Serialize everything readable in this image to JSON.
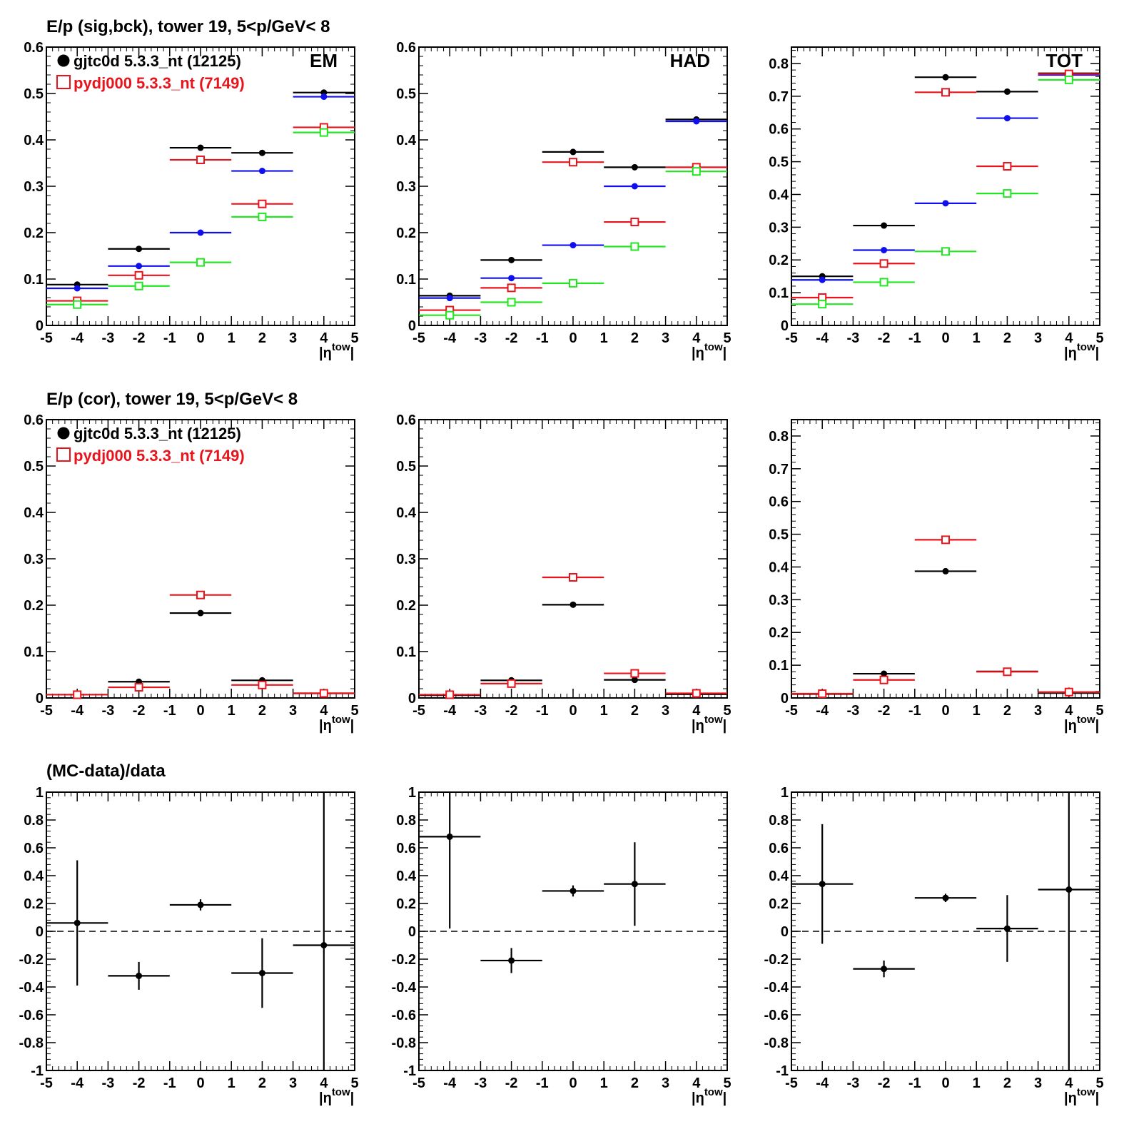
{
  "colors": {
    "data": "#000000",
    "mc": "#e8141c",
    "blue": "#1010ee",
    "green": "#22e622"
  },
  "row_titles": [
    "E/p (sig,bck), tower 19,  5<p/GeV< 8",
    "E/p (cor), tower 19,  5<p/GeV< 8",
    "(MC-data)/data"
  ],
  "legend": {
    "data_label": "gjtc0d 5.3.3_nt (12125)",
    "mc_label": "pydj000 5.3.3_nt (7149)"
  },
  "xaxis": {
    "label_main": "|η",
    "label_sup": "tow",
    "label_end": "|",
    "range": [
      -5,
      5
    ],
    "ticks": [
      "-5",
      "-4",
      "-3",
      "-2",
      "-1",
      "0",
      "1",
      "2",
      "3",
      "4",
      "5"
    ]
  },
  "chart_data": [
    {
      "type": "scatter",
      "tag": "EM",
      "ylim": [
        0,
        0.6
      ],
      "yticks": [
        "0",
        "0.1",
        "0.2",
        "0.3",
        "0.4",
        "0.5",
        "0.6"
      ],
      "legend_placement": "top-left",
      "x": [
        -4,
        -2,
        0,
        2,
        4
      ],
      "xerr": 1,
      "series": [
        {
          "color_key": "data",
          "marker": "dot",
          "values": [
            0.088,
            0.165,
            0.383,
            0.372,
            0.502
          ]
        },
        {
          "color_key": "blue",
          "marker": "dot",
          "values": [
            0.08,
            0.128,
            0.2,
            0.333,
            0.493
          ]
        },
        {
          "color_key": "mc",
          "marker": "square",
          "values": [
            0.053,
            0.108,
            0.357,
            0.262,
            0.427
          ]
        },
        {
          "color_key": "green",
          "marker": "square",
          "values": [
            0.045,
            0.085,
            0.136,
            0.234,
            0.416
          ]
        }
      ]
    },
    {
      "type": "scatter",
      "tag": "HAD",
      "ylim": [
        0,
        0.6
      ],
      "yticks": [
        "0",
        "0.1",
        "0.2",
        "0.3",
        "0.4",
        "0.5",
        "0.6"
      ],
      "x": [
        -4,
        -2,
        0,
        2,
        4
      ],
      "xerr": 1,
      "series": [
        {
          "color_key": "data",
          "marker": "dot",
          "values": [
            0.064,
            0.141,
            0.374,
            0.341,
            0.444
          ]
        },
        {
          "color_key": "blue",
          "marker": "dot",
          "values": [
            0.059,
            0.102,
            0.173,
            0.3,
            0.44
          ]
        },
        {
          "color_key": "mc",
          "marker": "square",
          "values": [
            0.033,
            0.081,
            0.352,
            0.223,
            0.341
          ]
        },
        {
          "color_key": "green",
          "marker": "square",
          "values": [
            0.022,
            0.05,
            0.091,
            0.17,
            0.332
          ]
        }
      ]
    },
    {
      "type": "scatter",
      "tag": "TOT",
      "ylim": [
        0,
        0.85
      ],
      "yticks": [
        "0",
        "0.1",
        "0.2",
        "0.3",
        "0.4",
        "0.5",
        "0.6",
        "0.7",
        "0.8"
      ],
      "x": [
        -4,
        -2,
        0,
        2,
        4
      ],
      "xerr": 1,
      "series": [
        {
          "color_key": "data",
          "marker": "dot",
          "values": [
            0.15,
            0.305,
            0.758,
            0.714,
            0.77
          ]
        },
        {
          "color_key": "blue",
          "marker": "dot",
          "values": [
            0.139,
            0.23,
            0.373,
            0.633,
            0.765
          ]
        },
        {
          "color_key": "mc",
          "marker": "square",
          "values": [
            0.085,
            0.189,
            0.712,
            0.486,
            0.768
          ]
        },
        {
          "color_key": "green",
          "marker": "square",
          "values": [
            0.065,
            0.132,
            0.226,
            0.403,
            0.75
          ]
        }
      ]
    },
    {
      "type": "scatter",
      "tag": "",
      "ylim": [
        0,
        0.6
      ],
      "yticks": [
        "0",
        "0.1",
        "0.2",
        "0.3",
        "0.4",
        "0.5",
        "0.6"
      ],
      "legend_placement": "top-left",
      "x": [
        -4,
        -2,
        0,
        2,
        4
      ],
      "xerr": 1,
      "series": [
        {
          "color_key": "data",
          "marker": "dot",
          "values": [
            0.007,
            0.035,
            0.183,
            0.038,
            0.01
          ],
          "yerr": [
            0.004,
            0,
            0,
            0,
            0.008
          ]
        },
        {
          "color_key": "mc",
          "marker": "square",
          "values": [
            0.007,
            0.023,
            0.222,
            0.028,
            0.01
          ],
          "yerr": [
            0,
            0,
            0,
            0,
            0.006
          ]
        }
      ]
    },
    {
      "type": "scatter",
      "tag": "",
      "ylim": [
        0,
        0.6
      ],
      "yticks": [
        "0",
        "0.1",
        "0.2",
        "0.3",
        "0.4",
        "0.5",
        "0.6"
      ],
      "x": [
        -4,
        -2,
        0,
        2,
        4
      ],
      "xerr": 1,
      "series": [
        {
          "color_key": "data",
          "marker": "dot",
          "values": [
            0.006,
            0.038,
            0.201,
            0.039,
            0.008
          ]
        },
        {
          "color_key": "mc",
          "marker": "square",
          "values": [
            0.007,
            0.031,
            0.26,
            0.053,
            0.01
          ],
          "yerr": [
            0,
            0,
            0,
            0,
            0.006
          ]
        }
      ]
    },
    {
      "type": "scatter",
      "tag": "",
      "ylim": [
        0,
        0.85
      ],
      "yticks": [
        "0",
        "0.1",
        "0.2",
        "0.3",
        "0.4",
        "0.5",
        "0.6",
        "0.7",
        "0.8"
      ],
      "x": [
        -4,
        -2,
        0,
        2,
        4
      ],
      "xerr": 1,
      "series": [
        {
          "color_key": "data",
          "marker": "dot",
          "values": [
            0.012,
            0.074,
            0.387,
            0.081,
            0.015
          ],
          "yerr": [
            0,
            0,
            0,
            0.006,
            0
          ]
        },
        {
          "color_key": "mc",
          "marker": "square",
          "values": [
            0.013,
            0.055,
            0.483,
            0.08,
            0.018
          ],
          "yerr": [
            0.005,
            0,
            0,
            0.005,
            0.014
          ]
        }
      ]
    },
    {
      "type": "scatter",
      "tag": "",
      "ylim": [
        -1,
        1
      ],
      "zero_line": true,
      "yticks": [
        "-1",
        "-0.8",
        "-0.6",
        "-0.4",
        "-0.2",
        "0",
        "0.2",
        "0.4",
        "0.6",
        "0.8",
        "1"
      ],
      "x": [
        -4,
        -2,
        0,
        2,
        4
      ],
      "xerr": 1,
      "series": [
        {
          "color_key": "data",
          "marker": "dot",
          "values": [
            0.06,
            -0.32,
            0.19,
            -0.3,
            -0.1
          ],
          "yerr": [
            0.45,
            0.1,
            0.04,
            0.25,
            1.1
          ]
        }
      ]
    },
    {
      "type": "scatter",
      "tag": "",
      "ylim": [
        -1,
        1
      ],
      "zero_line": true,
      "yticks": [
        "-1",
        "-0.8",
        "-0.6",
        "-0.4",
        "-0.2",
        "0",
        "0.2",
        "0.4",
        "0.6",
        "0.8",
        "1"
      ],
      "x": [
        -4,
        -2,
        2,
        0,
        -4
      ],
      "xerr": 1,
      "series": [
        {
          "color_key": "data",
          "marker": "dot",
          "x": [
            -4,
            -2,
            0,
            2
          ],
          "values": [
            0.68,
            -0.21,
            0.29,
            0.34
          ],
          "yerr": [
            0.66,
            0.09,
            0.04,
            0.3
          ]
        }
      ]
    },
    {
      "type": "scatter",
      "tag": "",
      "ylim": [
        -1,
        1
      ],
      "zero_line": true,
      "yticks": [
        "-1",
        "-0.8",
        "-0.6",
        "-0.4",
        "-0.2",
        "0",
        "0.2",
        "0.4",
        "0.6",
        "0.8",
        "1"
      ],
      "x": [
        -4,
        -2,
        0,
        2,
        4
      ],
      "xerr": 1,
      "series": [
        {
          "color_key": "data",
          "marker": "dot",
          "values": [
            0.34,
            -0.27,
            0.24,
            0.02,
            0.3
          ],
          "yerr": [
            0.43,
            0.06,
            0.03,
            0.24,
            1.3
          ]
        }
      ]
    }
  ]
}
